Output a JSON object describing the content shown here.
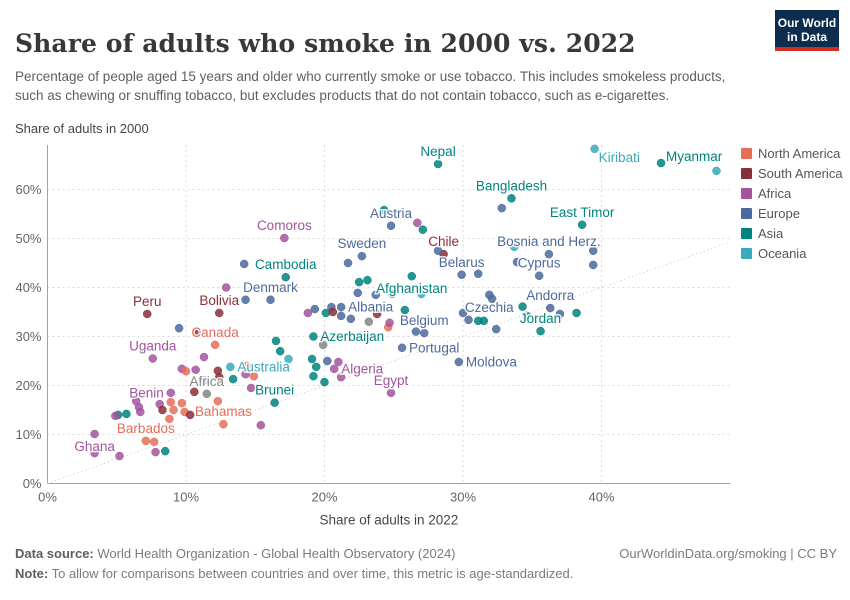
{
  "header": {
    "title": "Share of adults who smoke in 2000 vs. 2022",
    "subtitle": "Percentage of people aged 15 years and older who currently smoke or use tobacco. This includes smokeless products, such as chewing or snuffing tobacco, but excludes products that do not contain tobacco, such as e-cigarettes.",
    "logo": {
      "line1": "Our World",
      "line2": "in Data",
      "bg": "#0C2D4E",
      "stripe": "#CF2E21"
    }
  },
  "chart_data": {
    "type": "scatter",
    "y_axis_title": "Share of adults in 2000",
    "xlabel": "Share of adults in 2022",
    "x_ticks": [
      0,
      10,
      20,
      30,
      40
    ],
    "y_ticks": [
      0,
      10,
      20,
      30,
      40,
      50,
      60
    ],
    "xlim": [
      0,
      49.3
    ],
    "ylim": [
      0,
      69.2
    ],
    "grid": "dashed",
    "diagonal_reference_line": true,
    "legend_position": "right",
    "continent_colors": {
      "NA": "#E56E5A",
      "SA": "#883039",
      "AF": "#A2559C",
      "EU": "#4C6A9C",
      "AS": "#00847E",
      "OC": "#38AABA",
      "XX": "#858585"
    },
    "points": [
      {
        "x": 28.2,
        "y": 65.2,
        "c": "AS",
        "label": "Nepal",
        "lp": "above"
      },
      {
        "x": 39.5,
        "y": 68.3,
        "c": "OC",
        "label": "Kiribati",
        "lp": "belowright"
      },
      {
        "x": 44.3,
        "y": 65.4,
        "c": "AS",
        "label": "Myanmar",
        "lp": "aboveright"
      },
      {
        "x": 48.3,
        "y": 63.8,
        "c": "OC"
      },
      {
        "x": 33.5,
        "y": 58.2,
        "c": "AS",
        "label": "Bangladesh",
        "lp": "above"
      },
      {
        "x": 32.8,
        "y": 56.2,
        "c": "EU"
      },
      {
        "x": 24.8,
        "y": 52.6,
        "c": "EU",
        "label": "Austria",
        "lp": "above"
      },
      {
        "x": 27.1,
        "y": 51.8,
        "c": "AS"
      },
      {
        "x": 26.7,
        "y": 53.2,
        "c": "AF"
      },
      {
        "x": 24.3,
        "y": 55.8,
        "c": "AS"
      },
      {
        "x": 38.6,
        "y": 52.8,
        "c": "AS",
        "label": "East Timor",
        "lp": "above"
      },
      {
        "x": 17.1,
        "y": 50.1,
        "c": "AF",
        "label": "Comoros",
        "lp": "above"
      },
      {
        "x": 22.7,
        "y": 46.4,
        "c": "EU",
        "label": "Sweden",
        "lp": "above"
      },
      {
        "x": 21.7,
        "y": 45.0,
        "c": "EU"
      },
      {
        "x": 28.6,
        "y": 46.8,
        "c": "SA",
        "label": "Chile",
        "lp": "above"
      },
      {
        "x": 28.2,
        "y": 47.5,
        "c": "EU"
      },
      {
        "x": 36.2,
        "y": 46.8,
        "c": "EU",
        "label": "Bosnia and Herz.",
        "lp": "above"
      },
      {
        "x": 39.4,
        "y": 47.5,
        "c": "EU"
      },
      {
        "x": 33.7,
        "y": 48.3,
        "c": "OC"
      },
      {
        "x": 29.9,
        "y": 42.6,
        "c": "EU",
        "label": "Belarus",
        "lp": "above"
      },
      {
        "x": 31.1,
        "y": 42.8,
        "c": "EU"
      },
      {
        "x": 33.9,
        "y": 45.2,
        "c": "EU"
      },
      {
        "x": 35.5,
        "y": 42.4,
        "c": "EU",
        "label": "Cyprus",
        "lp": "above"
      },
      {
        "x": 39.4,
        "y": 44.6,
        "c": "EU"
      },
      {
        "x": 17.2,
        "y": 42.1,
        "c": "AS",
        "label": "Cambodia",
        "lp": "above"
      },
      {
        "x": 16.1,
        "y": 37.5,
        "c": "EU",
        "label": "Denmark",
        "lp": "above"
      },
      {
        "x": 26.3,
        "y": 42.3,
        "c": "AS",
        "label": "Afghanistan",
        "lp": "below"
      },
      {
        "x": 22.5,
        "y": 41.1,
        "c": "AS"
      },
      {
        "x": 23.1,
        "y": 41.5,
        "c": "AS"
      },
      {
        "x": 14.2,
        "y": 44.8,
        "c": "EU"
      },
      {
        "x": 12.9,
        "y": 40.0,
        "c": "AF"
      },
      {
        "x": 14.3,
        "y": 37.5,
        "c": "EU"
      },
      {
        "x": 7.2,
        "y": 34.6,
        "c": "SA",
        "label": "Peru",
        "lp": "above"
      },
      {
        "x": 12.4,
        "y": 34.8,
        "c": "SA",
        "label": "Bolivia",
        "lp": "above"
      },
      {
        "x": 31.9,
        "y": 38.5,
        "c": "EU",
        "label": "Czechia",
        "lp": "below"
      },
      {
        "x": 32.1,
        "y": 37.7,
        "c": "EU"
      },
      {
        "x": 35.6,
        "y": 31.1,
        "c": "AS",
        "label": "Jordan",
        "lp": "above"
      },
      {
        "x": 36.3,
        "y": 35.8,
        "c": "EU",
        "label": "Andorra",
        "lp": "above"
      },
      {
        "x": 34.3,
        "y": 36.1,
        "c": "AS"
      },
      {
        "x": 34.6,
        "y": 34.2,
        "c": "EU"
      },
      {
        "x": 37.0,
        "y": 34.6,
        "c": "EU"
      },
      {
        "x": 38.2,
        "y": 34.8,
        "c": "AS"
      },
      {
        "x": 12.1,
        "y": 28.3,
        "c": "NA",
        "label": "Canada",
        "lp": "above"
      },
      {
        "x": 27.2,
        "y": 30.7,
        "c": "EU",
        "label": "Belgium",
        "lp": "above"
      },
      {
        "x": 26.6,
        "y": 31.0,
        "c": "EU"
      },
      {
        "x": 19.2,
        "y": 30.0,
        "c": "AS",
        "label": "Azerbaijan",
        "lp": "right"
      },
      {
        "x": 7.6,
        "y": 25.5,
        "c": "AF",
        "label": "Uganda",
        "lp": "above"
      },
      {
        "x": 13.2,
        "y": 23.8,
        "c": "OC",
        "label": "Australia",
        "lp": "right"
      },
      {
        "x": 25.6,
        "y": 27.7,
        "c": "EU",
        "label": "Portugal",
        "lp": "right"
      },
      {
        "x": 29.7,
        "y": 24.8,
        "c": "EU",
        "label": "Moldova",
        "lp": "right"
      },
      {
        "x": 20.7,
        "y": 23.4,
        "c": "AF",
        "label": "Algeria",
        "lp": "right"
      },
      {
        "x": 8.9,
        "y": 18.5,
        "c": "AF",
        "label": "Benin",
        "lp": "left"
      },
      {
        "x": 11.5,
        "y": 18.3,
        "c": "XX",
        "label": "Africa",
        "lp": "above"
      },
      {
        "x": 16.4,
        "y": 16.5,
        "c": "AS",
        "label": "Brunei",
        "lp": "above"
      },
      {
        "x": 24.8,
        "y": 18.5,
        "c": "AF",
        "label": "Egypt",
        "lp": "above"
      },
      {
        "x": 12.7,
        "y": 12.1,
        "c": "NA",
        "label": "Bahamas",
        "lp": "above"
      },
      {
        "x": 7.1,
        "y": 8.7,
        "c": "NA",
        "label": "Barbados",
        "lp": "above"
      },
      {
        "x": 3.4,
        "y": 10.1,
        "c": "AF",
        "label": "Ghana",
        "lp": "below"
      },
      {
        "x": 18.8,
        "y": 34.8,
        "c": "AF"
      },
      {
        "x": 19.3,
        "y": 35.6,
        "c": "EU"
      },
      {
        "x": 20.1,
        "y": 34.8,
        "c": "AS"
      },
      {
        "x": 20.5,
        "y": 36.0,
        "c": "EU"
      },
      {
        "x": 20.6,
        "y": 35.0,
        "c": "SA"
      },
      {
        "x": 21.2,
        "y": 36.0,
        "c": "EU",
        "label": "Albania",
        "lp": "right"
      },
      {
        "x": 21.2,
        "y": 34.2,
        "c": "EU"
      },
      {
        "x": 21.9,
        "y": 33.6,
        "c": "EU"
      },
      {
        "x": 22.4,
        "y": 38.9,
        "c": "EU"
      },
      {
        "x": 23.7,
        "y": 38.5,
        "c": "EU"
      },
      {
        "x": 23.2,
        "y": 33.0,
        "c": "XX"
      },
      {
        "x": 23.8,
        "y": 34.6,
        "c": "SA"
      },
      {
        "x": 24.6,
        "y": 31.9,
        "c": "NA"
      },
      {
        "x": 24.7,
        "y": 32.8,
        "c": "AF"
      },
      {
        "x": 24.9,
        "y": 38.7,
        "c": "EU"
      },
      {
        "x": 25.8,
        "y": 35.4,
        "c": "AS"
      },
      {
        "x": 27.0,
        "y": 38.7,
        "c": "OC"
      },
      {
        "x": 30.0,
        "y": 34.8,
        "c": "EU"
      },
      {
        "x": 30.4,
        "y": 33.4,
        "c": "EU"
      },
      {
        "x": 31.1,
        "y": 33.2,
        "c": "AS"
      },
      {
        "x": 31.5,
        "y": 33.2,
        "c": "AS"
      },
      {
        "x": 32.4,
        "y": 31.5,
        "c": "EU"
      },
      {
        "x": 16.5,
        "y": 29.1,
        "c": "AS"
      },
      {
        "x": 16.8,
        "y": 27.0,
        "c": "AS"
      },
      {
        "x": 17.4,
        "y": 25.4,
        "c": "OC"
      },
      {
        "x": 19.1,
        "y": 25.4,
        "c": "AS"
      },
      {
        "x": 19.4,
        "y": 23.8,
        "c": "AS"
      },
      {
        "x": 20.2,
        "y": 25.0,
        "c": "EU"
      },
      {
        "x": 21.0,
        "y": 24.8,
        "c": "AF"
      },
      {
        "x": 21.2,
        "y": 21.7,
        "c": "AF"
      },
      {
        "x": 19.2,
        "y": 21.9,
        "c": "AS"
      },
      {
        "x": 20.0,
        "y": 20.7,
        "c": "AS"
      },
      {
        "x": 19.9,
        "y": 28.3,
        "c": "XX"
      },
      {
        "x": 9.5,
        "y": 31.7,
        "c": "EU"
      },
      {
        "x": 10.8,
        "y": 30.9,
        "c": "SA"
      },
      {
        "x": 11.3,
        "y": 25.8,
        "c": "AF"
      },
      {
        "x": 9.7,
        "y": 23.4,
        "c": "AF"
      },
      {
        "x": 10.7,
        "y": 23.2,
        "c": "AF"
      },
      {
        "x": 14.4,
        "y": 24.0,
        "c": "NA"
      },
      {
        "x": 14.3,
        "y": 22.3,
        "c": "AF"
      },
      {
        "x": 14.9,
        "y": 21.9,
        "c": "NA"
      },
      {
        "x": 12.3,
        "y": 23.0,
        "c": "SA"
      },
      {
        "x": 12.4,
        "y": 21.7,
        "c": "SA"
      },
      {
        "x": 13.4,
        "y": 21.3,
        "c": "AS"
      },
      {
        "x": 11.3,
        "y": 21.0,
        "c": "AF"
      },
      {
        "x": 10.0,
        "y": 22.9,
        "c": "NA"
      },
      {
        "x": 14.7,
        "y": 19.5,
        "c": "AF"
      },
      {
        "x": 10.6,
        "y": 18.7,
        "c": "SA"
      },
      {
        "x": 12.3,
        "y": 16.8,
        "c": "NA"
      },
      {
        "x": 9.9,
        "y": 14.6,
        "c": "NA"
      },
      {
        "x": 6.4,
        "y": 16.8,
        "c": "AF"
      },
      {
        "x": 6.6,
        "y": 15.6,
        "c": "AF"
      },
      {
        "x": 8.1,
        "y": 16.2,
        "c": "AF"
      },
      {
        "x": 8.9,
        "y": 16.6,
        "c": "NA"
      },
      {
        "x": 8.3,
        "y": 15.0,
        "c": "SA"
      },
      {
        "x": 9.1,
        "y": 15.0,
        "c": "NA"
      },
      {
        "x": 9.7,
        "y": 16.4,
        "c": "NA"
      },
      {
        "x": 5.1,
        "y": 14.0,
        "c": "AS"
      },
      {
        "x": 5.7,
        "y": 14.2,
        "c": "AS"
      },
      {
        "x": 4.9,
        "y": 13.8,
        "c": "AF"
      },
      {
        "x": 6.7,
        "y": 14.6,
        "c": "AF"
      },
      {
        "x": 8.8,
        "y": 13.2,
        "c": "NA"
      },
      {
        "x": 10.3,
        "y": 14.0,
        "c": "SA"
      },
      {
        "x": 15.4,
        "y": 11.9,
        "c": "AF"
      },
      {
        "x": 7.7,
        "y": 8.5,
        "c": "NA"
      },
      {
        "x": 3.4,
        "y": 6.2,
        "c": "AF"
      },
      {
        "x": 5.2,
        "y": 5.6,
        "c": "AF"
      },
      {
        "x": 7.8,
        "y": 6.4,
        "c": "AF"
      },
      {
        "x": 8.5,
        "y": 6.6,
        "c": "AS"
      }
    ]
  },
  "legend": {
    "items": [
      {
        "label": "North America",
        "color": "#E56E5A"
      },
      {
        "label": "South America",
        "color": "#883039"
      },
      {
        "label": "Africa",
        "color": "#A2559C"
      },
      {
        "label": "Europe",
        "color": "#4C6A9C"
      },
      {
        "label": "Asia",
        "color": "#00847E"
      },
      {
        "label": "Oceania",
        "color": "#38AABA"
      }
    ]
  },
  "footer": {
    "source_label": "Data source:",
    "source_text": " World Health Organization - Global Health Observatory (2024)",
    "link": "OurWorldinData.org/smoking | CC BY",
    "note_label": "Note:",
    "note_text": " To allow for comparisons between countries and over time, this metric is age-standardized."
  }
}
